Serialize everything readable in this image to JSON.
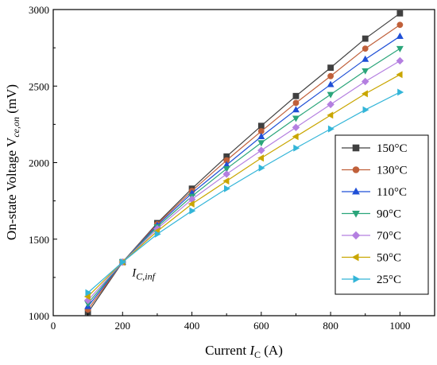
{
  "chart_data": {
    "type": "line",
    "xlabel": {
      "prefix": "Current ",
      "symbol": "I",
      "sub": "C",
      "suffix": " (A)"
    },
    "ylabel": {
      "prefix": "On-state Voltage V",
      "sub": "ce,on",
      "suffix": " (mV)"
    },
    "xlim": [
      0,
      1100
    ],
    "ylim": [
      1000,
      3000
    ],
    "x_ticks": [
      0,
      200,
      400,
      600,
      800,
      1000
    ],
    "y_ticks": [
      1000,
      1500,
      2000,
      2500,
      3000
    ],
    "grid": false,
    "legend_position": "center-right",
    "annotation": {
      "symbol": "I",
      "sub": "C,inf",
      "x": 200,
      "y": 1350
    },
    "x": [
      100,
      200,
      300,
      400,
      500,
      600,
      700,
      800,
      900,
      1000
    ],
    "series": [
      {
        "name": "150°C",
        "marker": "square",
        "color": "#404040",
        "values": [
          1020,
          1350,
          1605,
          1830,
          2040,
          2240,
          2435,
          2620,
          2810,
          2975
        ]
      },
      {
        "name": "130°C",
        "marker": "circle",
        "color": "#c0603a",
        "values": [
          1040,
          1350,
          1598,
          1815,
          2015,
          2205,
          2390,
          2565,
          2745,
          2900
        ]
      },
      {
        "name": "110°C",
        "marker": "triangle-up",
        "color": "#1f4fd6",
        "values": [
          1060,
          1350,
          1590,
          1800,
          1985,
          2170,
          2345,
          2510,
          2675,
          2825
        ]
      },
      {
        "name": "90°C",
        "marker": "triangle-down",
        "color": "#2aa57a",
        "values": [
          1080,
          1350,
          1580,
          1780,
          1960,
          2130,
          2290,
          2445,
          2600,
          2745
        ]
      },
      {
        "name": "70°C",
        "marker": "diamond",
        "color": "#b47fe0",
        "values": [
          1100,
          1350,
          1568,
          1760,
          1925,
          2080,
          2230,
          2380,
          2530,
          2665
        ]
      },
      {
        "name": "50°C",
        "marker": "triangle-left",
        "color": "#c9a600",
        "values": [
          1125,
          1350,
          1552,
          1730,
          1880,
          2030,
          2170,
          2310,
          2450,
          2575
        ]
      },
      {
        "name": "25°C",
        "marker": "triangle-right",
        "color": "#33b5d8",
        "values": [
          1150,
          1350,
          1533,
          1685,
          1830,
          1965,
          2095,
          2220,
          2345,
          2460
        ]
      }
    ]
  }
}
